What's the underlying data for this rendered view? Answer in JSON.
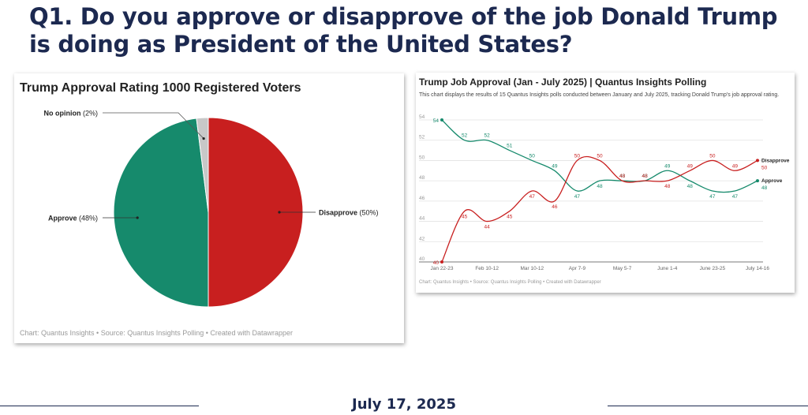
{
  "headline": "Q1. Do you approve or disapprove of the job Donald Trump is doing as President of the United States?",
  "footer_date": "July 17, 2025",
  "pie_chart": {
    "footer": "Chart: Quantus Insights  • Source: Quantus Insights Polling  • Created with Datawrapper"
  },
  "line_chart": {
    "footer": "Chart: Quantus Insights • Source: Quantus Insights Polling • Created with Datawrapper"
  },
  "colors": {
    "approve": "#168a6c",
    "disapprove": "#c81f1f",
    "no_opinion": "#c8c8c8",
    "navy": "#1c2950"
  },
  "chart_data": [
    {
      "type": "pie",
      "title": "Trump Approval Rating 1000 Registered Voters",
      "slices": [
        {
          "label": "Disapprove",
          "value": 50,
          "value_text": "(50%)"
        },
        {
          "label": "Approve",
          "value": 48,
          "value_text": "(48%)"
        },
        {
          "label": "No opinion",
          "value": 2,
          "value_text": "(2%)"
        }
      ]
    },
    {
      "type": "line",
      "title": "Trump Job Approval (Jan - July 2025) | Quantus Insights Polling",
      "subtitle": "This chart displays the results of 15 Quantus Insights polls conducted between January and July 2025, tracking Donald Trump's job approval rating.",
      "x_tick_labels": [
        "Jan 22-23",
        "Feb 10-12",
        "Mar 10-12",
        "Apr 7-9",
        "May 5-7",
        "June 1-4",
        "June 23-25",
        "July 14-16"
      ],
      "y_ticks": [
        40,
        42,
        44,
        46,
        48,
        50,
        52,
        54
      ],
      "ylim": [
        40,
        54
      ],
      "series": [
        {
          "name": "Approve",
          "values": [
            54,
            52,
            52,
            51,
            50,
            49,
            47,
            48,
            48,
            48,
            49,
            48,
            47,
            47,
            48
          ]
        },
        {
          "name": "Disapprove",
          "values": [
            40,
            45,
            44,
            45,
            47,
            46,
            50,
            50,
            48,
            48,
            48,
            49,
            50,
            49,
            50
          ]
        }
      ]
    }
  ]
}
